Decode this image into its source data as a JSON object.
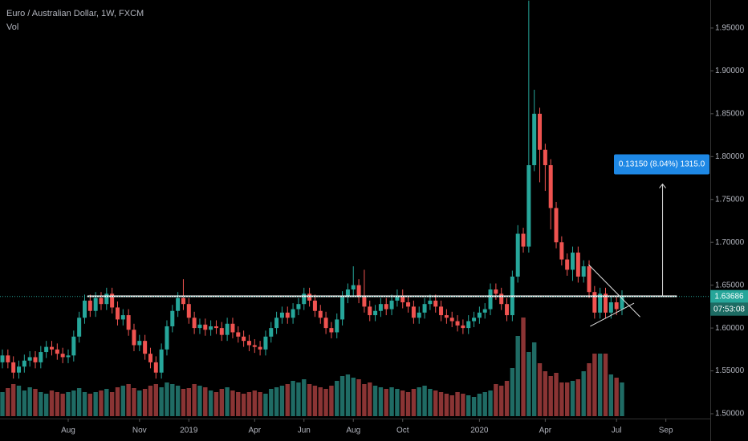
{
  "chart_data": {
    "type": "candlestick",
    "title": "Euro / Australian Dollar, 1W, FXCM",
    "volume_label": "Vol",
    "countdown": "07:53:08",
    "up_color": "#26a69a",
    "down_color": "#ef5350",
    "volume_up_color": "#1f6b64",
    "volume_down_color": "#8a3434",
    "xlim": [
      -0.44,
      129.1
    ],
    "ylim": [
      1.4944,
      1.9827
    ],
    "vlim": [
      0,
      130
    ],
    "yticks": [
      {
        "value": 1.5,
        "label": "1.50000"
      },
      {
        "value": 1.55,
        "label": "1.55000"
      },
      {
        "value": 1.6,
        "label": "1.60000"
      },
      {
        "value": 1.65,
        "label": "1.65000"
      },
      {
        "value": 1.7,
        "label": "1.70000"
      },
      {
        "value": 1.75,
        "label": "1.75000"
      },
      {
        "value": 1.8,
        "label": "1.80000"
      },
      {
        "value": 1.85,
        "label": "1.85000"
      },
      {
        "value": 1.9,
        "label": "1.90000"
      },
      {
        "value": 1.95,
        "label": "1.95000"
      }
    ],
    "xticks": [
      {
        "value": 12,
        "label": "Aug"
      },
      {
        "value": 25,
        "label": "Nov"
      },
      {
        "value": 34,
        "label": "2019"
      },
      {
        "value": 46,
        "label": "Apr"
      },
      {
        "value": 55,
        "label": "Jun"
      },
      {
        "value": 64,
        "label": "Aug"
      },
      {
        "value": 73,
        "label": "Oct"
      },
      {
        "value": 87,
        "label": "2020"
      },
      {
        "value": 99,
        "label": "Apr"
      },
      {
        "value": 112,
        "label": "Jul"
      },
      {
        "value": 121,
        "label": "Sep"
      }
    ],
    "open": [
      1.56,
      1.568,
      1.56,
      1.548,
      1.555,
      1.562,
      1.566,
      1.56,
      1.572,
      1.578,
      1.575,
      1.57,
      1.566,
      1.568,
      1.59,
      1.612,
      1.632,
      1.62,
      1.635,
      1.628,
      1.64,
      1.624,
      1.61,
      1.615,
      1.598,
      1.58,
      1.585,
      1.57,
      1.56,
      1.548,
      1.575,
      1.602,
      1.62,
      1.635,
      1.628,
      1.612,
      1.6,
      1.604,
      1.598,
      1.602,
      1.6,
      1.592,
      1.605,
      1.595,
      1.59,
      1.585,
      1.58,
      1.578,
      1.575,
      1.59,
      1.6,
      1.612,
      1.618,
      1.612,
      1.622,
      1.628,
      1.64,
      1.632,
      1.62,
      1.612,
      1.6,
      1.595,
      1.61,
      1.636,
      1.645,
      1.65,
      1.636,
      1.625,
      1.615,
      1.62,
      1.628,
      1.622,
      1.632,
      1.638,
      1.63,
      1.625,
      1.612,
      1.618,
      1.628,
      1.632,
      1.625,
      1.615,
      1.612,
      1.608,
      1.603,
      1.6,
      1.608,
      1.612,
      1.618,
      1.622,
      1.645,
      1.64,
      1.628,
      1.615,
      1.66,
      1.71,
      1.695,
      1.79,
      1.85,
      1.808,
      1.79,
      1.74,
      1.7,
      1.68,
      1.668,
      1.688,
      1.66,
      1.672,
      1.642,
      1.618,
      1.64,
      1.618,
      1.63,
      1.622
    ],
    "high": [
      1.575,
      1.575,
      1.567,
      1.562,
      1.569,
      1.573,
      1.573,
      1.579,
      1.585,
      1.585,
      1.582,
      1.577,
      1.575,
      1.597,
      1.619,
      1.639,
      1.639,
      1.642,
      1.642,
      1.647,
      1.647,
      1.631,
      1.622,
      1.622,
      1.605,
      1.592,
      1.592,
      1.577,
      1.567,
      1.582,
      1.609,
      1.627,
      1.642,
      1.657,
      1.635,
      1.619,
      1.611,
      1.611,
      1.609,
      1.609,
      1.607,
      1.612,
      1.612,
      1.602,
      1.597,
      1.592,
      1.587,
      1.585,
      1.597,
      1.607,
      1.619,
      1.625,
      1.625,
      1.629,
      1.635,
      1.647,
      1.647,
      1.639,
      1.627,
      1.619,
      1.607,
      1.617,
      1.643,
      1.652,
      1.672,
      1.657,
      1.668,
      1.632,
      1.627,
      1.635,
      1.635,
      1.639,
      1.645,
      1.645,
      1.637,
      1.632,
      1.625,
      1.635,
      1.639,
      1.639,
      1.632,
      1.622,
      1.619,
      1.615,
      1.61,
      1.615,
      1.619,
      1.625,
      1.629,
      1.652,
      1.652,
      1.647,
      1.635,
      1.667,
      1.72,
      1.717,
      1.982,
      1.878,
      1.857,
      1.815,
      1.797,
      1.747,
      1.707,
      1.687,
      1.695,
      1.695,
      1.679,
      1.679,
      1.649,
      1.647,
      1.647,
      1.637,
      1.637,
      1.644
    ],
    "low": [
      1.553,
      1.553,
      1.541,
      1.541,
      1.548,
      1.555,
      1.553,
      1.553,
      1.565,
      1.568,
      1.563,
      1.559,
      1.559,
      1.561,
      1.583,
      1.605,
      1.613,
      1.613,
      1.621,
      1.621,
      1.617,
      1.603,
      1.603,
      1.591,
      1.573,
      1.573,
      1.563,
      1.553,
      1.541,
      1.541,
      1.568,
      1.595,
      1.613,
      1.621,
      1.605,
      1.593,
      1.593,
      1.591,
      1.591,
      1.593,
      1.585,
      1.585,
      1.588,
      1.583,
      1.578,
      1.573,
      1.571,
      1.568,
      1.568,
      1.583,
      1.593,
      1.605,
      1.605,
      1.605,
      1.615,
      1.621,
      1.625,
      1.613,
      1.605,
      1.593,
      1.588,
      1.588,
      1.603,
      1.629,
      1.638,
      1.629,
      1.618,
      1.608,
      1.608,
      1.613,
      1.615,
      1.615,
      1.625,
      1.623,
      1.618,
      1.605,
      1.605,
      1.611,
      1.621,
      1.618,
      1.608,
      1.605,
      1.601,
      1.596,
      1.593,
      1.593,
      1.601,
      1.605,
      1.611,
      1.615,
      1.633,
      1.621,
      1.608,
      1.608,
      1.653,
      1.688,
      1.688,
      1.783,
      1.77,
      1.76,
      1.715,
      1.693,
      1.673,
      1.661,
      1.655,
      1.653,
      1.653,
      1.635,
      1.611,
      1.611,
      1.611,
      1.611,
      1.615,
      1.615
    ],
    "close": [
      1.568,
      1.56,
      1.548,
      1.555,
      1.562,
      1.566,
      1.56,
      1.572,
      1.578,
      1.575,
      1.57,
      1.566,
      1.568,
      1.59,
      1.612,
      1.632,
      1.62,
      1.635,
      1.628,
      1.64,
      1.624,
      1.61,
      1.615,
      1.598,
      1.58,
      1.585,
      1.57,
      1.56,
      1.548,
      1.575,
      1.602,
      1.62,
      1.635,
      1.628,
      1.612,
      1.6,
      1.604,
      1.598,
      1.602,
      1.6,
      1.592,
      1.605,
      1.595,
      1.59,
      1.585,
      1.58,
      1.578,
      1.575,
      1.59,
      1.6,
      1.612,
      1.618,
      1.612,
      1.622,
      1.628,
      1.64,
      1.632,
      1.62,
      1.612,
      1.6,
      1.595,
      1.61,
      1.636,
      1.645,
      1.65,
      1.636,
      1.625,
      1.615,
      1.62,
      1.628,
      1.622,
      1.632,
      1.638,
      1.63,
      1.625,
      1.612,
      1.618,
      1.628,
      1.632,
      1.625,
      1.615,
      1.612,
      1.608,
      1.603,
      1.6,
      1.608,
      1.612,
      1.618,
      1.622,
      1.645,
      1.64,
      1.628,
      1.615,
      1.66,
      1.71,
      1.695,
      1.79,
      1.85,
      1.808,
      1.79,
      1.74,
      1.7,
      1.68,
      1.668,
      1.688,
      1.66,
      1.672,
      1.642,
      1.618,
      1.64,
      1.618,
      1.63,
      1.622,
      1.63686
    ],
    "volume": [
      30,
      35,
      40,
      38,
      32,
      36,
      34,
      30,
      28,
      32,
      30,
      28,
      30,
      32,
      35,
      30,
      28,
      30,
      32,
      34,
      30,
      36,
      38,
      40,
      35,
      32,
      34,
      38,
      40,
      36,
      42,
      40,
      38,
      34,
      35,
      40,
      38,
      36,
      32,
      30,
      34,
      36,
      32,
      30,
      28,
      30,
      32,
      30,
      28,
      34,
      36,
      38,
      40,
      44,
      42,
      46,
      40,
      38,
      36,
      34,
      38,
      44,
      50,
      52,
      48,
      46,
      40,
      42,
      38,
      36,
      34,
      36,
      34,
      32,
      30,
      34,
      36,
      38,
      34,
      32,
      30,
      28,
      26,
      30,
      28,
      26,
      24,
      28,
      30,
      32,
      40,
      38,
      44,
      60,
      100,
      123,
      80,
      92,
      66,
      56,
      50,
      54,
      42,
      42,
      44,
      46,
      56,
      66,
      78,
      78,
      78,
      52,
      48,
      42
    ],
    "hline": {
      "price": 1.637,
      "from": 15.5,
      "to": 123
    },
    "triangle": [
      {
        "x": [
          106.9,
          116.3
        ],
        "y": [
          1.674,
          1.613
        ]
      },
      {
        "x": [
          107.2,
          115.2
        ],
        "y": [
          1.602,
          1.629
        ]
      }
    ],
    "measure": {
      "label": "0.13150 (8.04%) 1315.0",
      "x": 120.4,
      "from": 1.637,
      "to": 1.768
    }
  }
}
